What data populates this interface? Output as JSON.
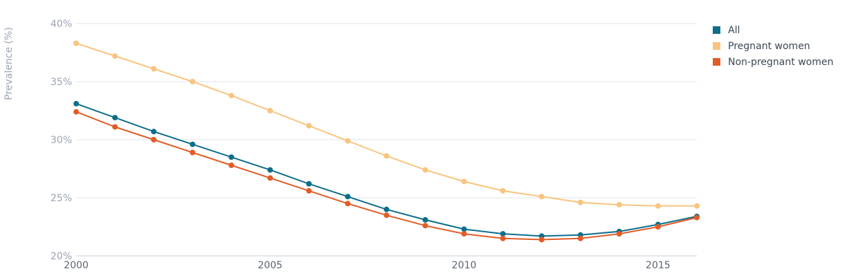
{
  "chart_data": {
    "type": "line",
    "ylabel": "Prevalence (%)",
    "xlim": [
      2000,
      2016
    ],
    "ylim": [
      20,
      40
    ],
    "y_ticks": [
      20,
      25,
      30,
      35,
      40
    ],
    "y_tick_labels": [
      "20%",
      "25%",
      "30%",
      "35%",
      "40%"
    ],
    "x_ticks": [
      2000,
      2005,
      2010,
      2015
    ],
    "x_tick_labels": [
      "2000",
      "2005",
      "2010",
      "2015"
    ],
    "grid": true,
    "legend_position": "top-right",
    "x": [
      2000,
      2001,
      2002,
      2003,
      2004,
      2005,
      2006,
      2007,
      2008,
      2009,
      2010,
      2011,
      2012,
      2013,
      2014,
      2015,
      2016
    ],
    "series": [
      {
        "name": "All",
        "color": "#0d6e8a",
        "values": [
          33.1,
          31.9,
          30.7,
          29.6,
          28.5,
          27.4,
          26.2,
          25.1,
          24.0,
          23.1,
          22.3,
          21.9,
          21.7,
          21.8,
          22.1,
          22.7,
          23.4
        ]
      },
      {
        "name": "Pregnant women",
        "color": "#f9c47e",
        "values": [
          38.3,
          37.2,
          36.1,
          35.0,
          33.8,
          32.5,
          31.2,
          29.9,
          28.6,
          27.4,
          26.4,
          25.6,
          25.1,
          24.6,
          24.4,
          24.3,
          24.3
        ]
      },
      {
        "name": "Non-pregnant women",
        "color": "#e25c26",
        "values": [
          32.4,
          31.1,
          30.0,
          28.9,
          27.8,
          26.7,
          25.6,
          24.5,
          23.5,
          22.6,
          21.9,
          21.5,
          21.4,
          21.5,
          21.9,
          22.5,
          23.3
        ]
      }
    ]
  }
}
